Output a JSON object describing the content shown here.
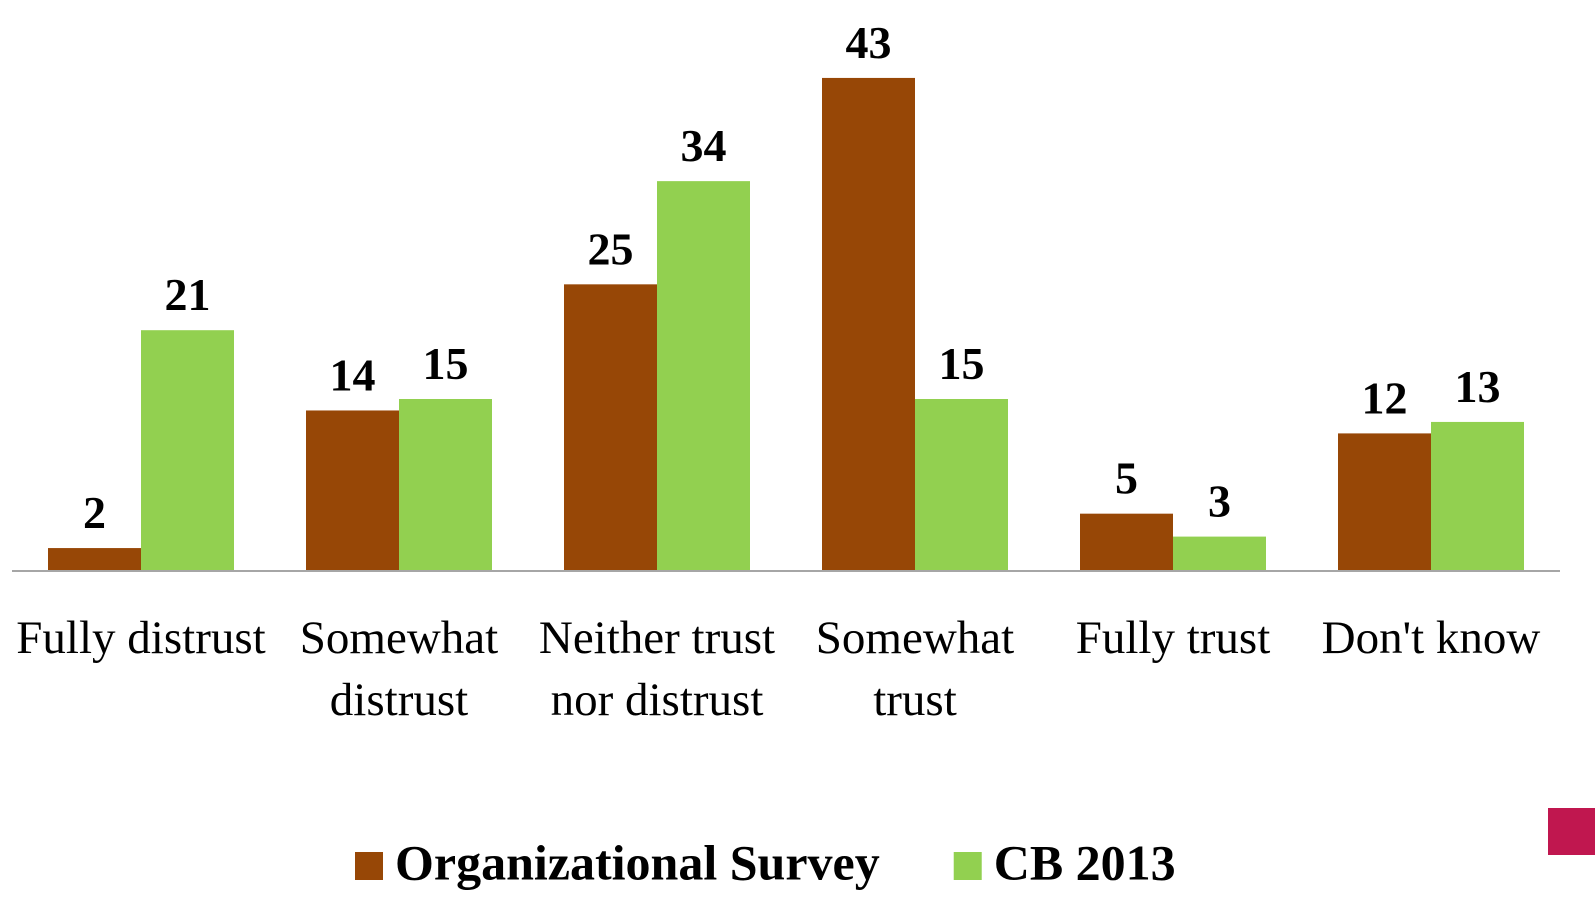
{
  "chart_data": {
    "type": "bar",
    "categories": [
      "Fully distrust",
      "Somewhat distrust",
      "Neither trust nor distrust",
      "Somewhat trust",
      "Fully trust",
      "Don't know"
    ],
    "series": [
      {
        "name": "Organizational Survey",
        "color": "#974706",
        "values": [
          2,
          14,
          25,
          43,
          5,
          12
        ]
      },
      {
        "name": "CB 2013",
        "color": "#92d050",
        "values": [
          21,
          15,
          34,
          15,
          3,
          13
        ]
      }
    ],
    "ylim": [
      0,
      45
    ],
    "grid": false,
    "legend": "bottom"
  }
}
